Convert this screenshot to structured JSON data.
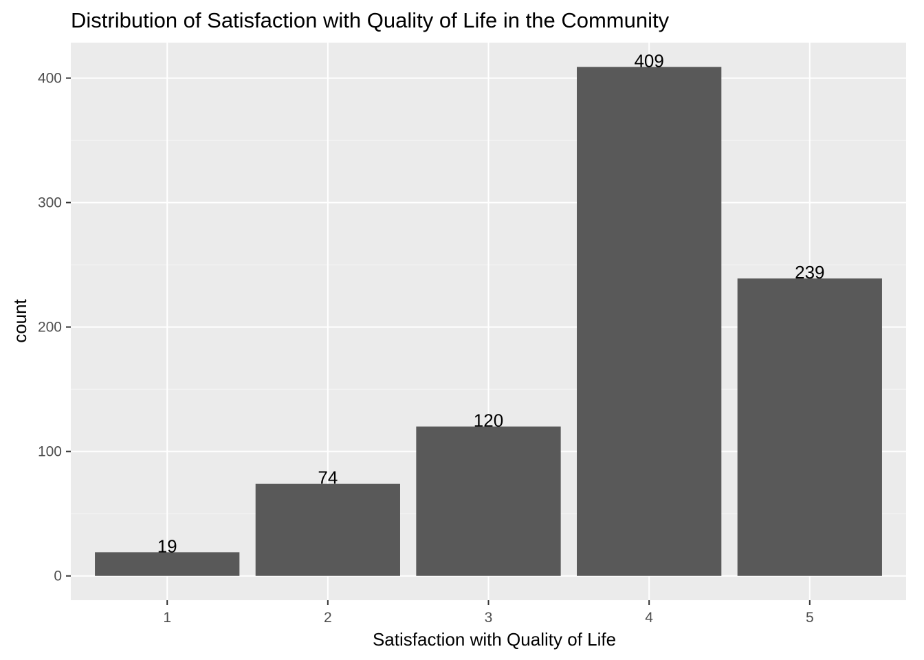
{
  "chart_data": {
    "type": "bar",
    "title": "Distribution of Satisfaction with Quality of Life in the Community",
    "xlabel": "Satisfaction with Quality of Life",
    "ylabel": "count",
    "categories": [
      "1",
      "2",
      "3",
      "4",
      "5"
    ],
    "values": [
      19,
      74,
      120,
      409,
      239
    ],
    "data_labels": [
      "19",
      "74",
      "120",
      "409",
      "239"
    ],
    "y_ticks": [
      0,
      100,
      200,
      300,
      400
    ],
    "y_tick_labels": [
      "0",
      "100",
      "200",
      "300",
      "400"
    ],
    "ylim": [
      -19.5,
      428.5
    ],
    "grid": true,
    "legend": "none",
    "colors": {
      "bar": "#595959",
      "panel": "#ebebeb",
      "grid_major": "#ffffff",
      "grid_minor": "#f5f5f5",
      "tick": "#333333"
    }
  }
}
